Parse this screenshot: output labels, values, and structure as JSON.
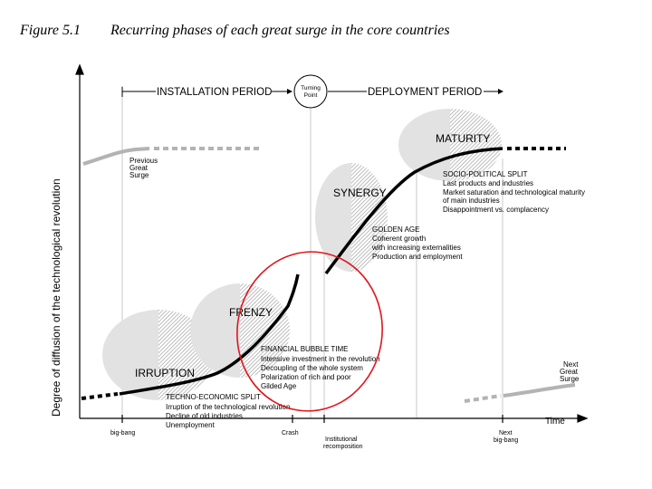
{
  "figure": {
    "number": "Figure 5.1",
    "title": "Recurring phases of each great surge in the core countries"
  },
  "axes": {
    "y_label": "Degree of diffusion of the technological revolution",
    "x_label": "Time"
  },
  "periods": {
    "installation": "INSTALLATION PERIOD",
    "turning_point": [
      "Turning",
      "Point"
    ],
    "deployment": "DEPLOYMENT PERIOD"
  },
  "phases": {
    "irruption": "IRRUPTION",
    "frenzy": "FRENZY",
    "synergy": "SYNERGY",
    "maturity": "MATURITY"
  },
  "notes": {
    "previous_surge": [
      "Previous",
      "Great",
      "Surge"
    ],
    "next_surge": [
      "Next",
      "Great",
      "Surge"
    ],
    "techno_economic": {
      "title": "TECHNO-ECONOMIC SPLIT",
      "lines": [
        "Irruption of the technological revolution",
        "Decline of old industries",
        "Unemployment"
      ]
    },
    "financial_bubble": {
      "title": "FINANCIAL BUBBLE TIME",
      "lines": [
        "Intensive investment in the revolution",
        "Decoupling of the whole system",
        "Polarization of rich and poor",
        "Gilded Age"
      ]
    },
    "golden_age": {
      "title": "GOLDEN AGE",
      "lines": [
        "Coherent growth",
        "with increasing externalities",
        "Production and employment"
      ]
    },
    "socio_political": {
      "title": "SOCIO-POLITICAL SPLIT",
      "lines": [
        "Last products and industries",
        "Market saturation and technological maturity",
        "of main industries",
        "Disappointment vs. complacency"
      ]
    }
  },
  "x_ticks": {
    "big_bang": "big-bang",
    "crash": "Crash",
    "institutional": [
      "Institutional",
      "recomposition"
    ],
    "next_big_bang": [
      "Next",
      "big-bang"
    ]
  },
  "colors": {
    "curve": "#000000",
    "previous_curve": "#b3b3b3",
    "phase_blob": "#e2e2e2",
    "phase_hatch": "#9a9a9a",
    "annotation_circle": "#e0161b",
    "gridline": "#c8c8c8"
  }
}
